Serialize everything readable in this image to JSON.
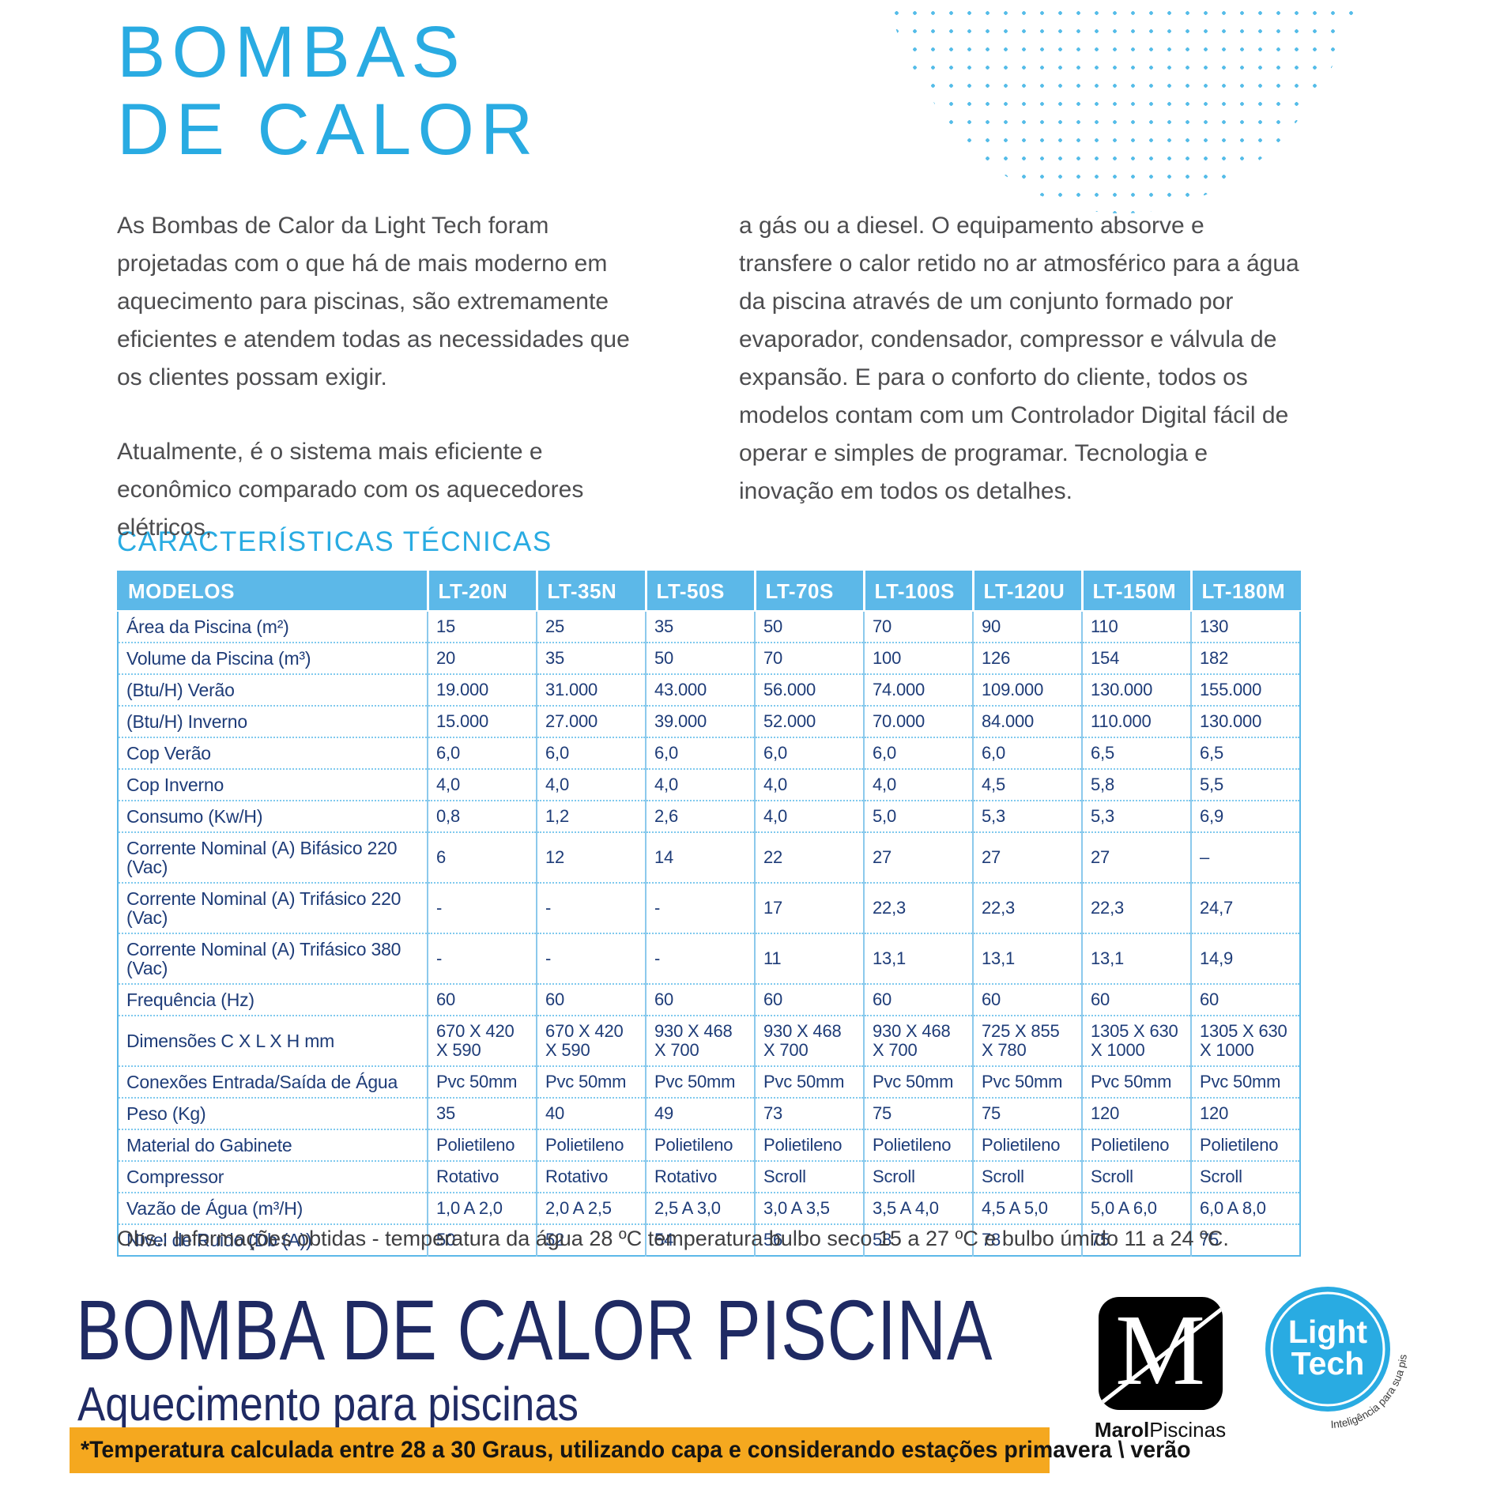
{
  "colors": {
    "accent": "#29ABE2",
    "table_header_blue": "#5CB8E8",
    "cell_navy": "#1E3C78",
    "footer_navy": "#1F2A63",
    "banner_orange": "#F5A81F"
  },
  "header": {
    "title_line1": "BOMBAS",
    "title_line2": "DE CALOR"
  },
  "intro": {
    "left_p1": "As Bombas de Calor da Light Tech foram projetadas com o que há de mais moderno em aquecimento para piscinas, são extremamente eficientes e atendem todas as necessidades que os clientes possam exigir.",
    "left_p2": "Atualmente, é o sistema mais eficiente e econômico comparado com os aquecedores elétricos,",
    "right_p": "a gás ou a diesel. O equipamento absorve e transfere o calor retido no ar atmosférico para a água da piscina através de um conjunto formado por evaporador, condensador, compressor e válvula de expansão. E para o conforto do cliente, todos os modelos contam com um Controlador Digital fácil de operar e simples de programar. Tecnologia e inovação em todos os detalhes."
  },
  "section_heading": "CARACTERÍSTICAS TÉCNICAS",
  "table": {
    "header": [
      "MODELOS",
      "LT-20N",
      "LT-35N",
      "LT-50S",
      "LT-70S",
      "LT-100S",
      "LT-120U",
      "LT-150M",
      "LT-180M"
    ],
    "rows": [
      {
        "label": "Área da Piscina (m²)",
        "values": [
          "15",
          "25",
          "35",
          "50",
          "70",
          "90",
          "110",
          "130"
        ]
      },
      {
        "label": "Volume da Piscina (m³)",
        "values": [
          "20",
          "35",
          "50",
          "70",
          "100",
          "126",
          "154",
          "182"
        ]
      },
      {
        "label": "(Btu/H) Verão",
        "values": [
          "19.000",
          "31.000",
          "43.000",
          "56.000",
          "74.000",
          "109.000",
          "130.000",
          "155.000"
        ]
      },
      {
        "label": "(Btu/H) Inverno",
        "values": [
          "15.000",
          "27.000",
          "39.000",
          "52.000",
          "70.000",
          "84.000",
          "110.000",
          "130.000"
        ]
      },
      {
        "label": "Cop Verão",
        "values": [
          "6,0",
          "6,0",
          "6,0",
          "6,0",
          "6,0",
          "6,0",
          "6,5",
          "6,5"
        ]
      },
      {
        "label": "Cop Inverno",
        "values": [
          "4,0",
          "4,0",
          "4,0",
          "4,0",
          "4,0",
          "4,5",
          "5,8",
          "5,5"
        ]
      },
      {
        "label": "Consumo (Kw/H)",
        "values": [
          "0,8",
          "1,2",
          "2,6",
          "4,0",
          "5,0",
          "5,3",
          "5,3",
          "6,9"
        ]
      },
      {
        "label": "Corrente Nominal (A) Bifásico 220 (Vac)",
        "values": [
          "6",
          "12",
          "14",
          "22",
          "27",
          "27",
          "27",
          "–"
        ]
      },
      {
        "label": "Corrente Nominal (A) Trifásico 220 (Vac)",
        "values": [
          "-",
          "-",
          "-",
          "17",
          "22,3",
          "22,3",
          "22,3",
          "24,7"
        ]
      },
      {
        "label": "Corrente Nominal (A) Trifásico 380 (Vac)",
        "values": [
          "-",
          "-",
          "-",
          "11",
          "13,1",
          "13,1",
          "13,1",
          "14,9"
        ]
      },
      {
        "label": "Frequência (Hz)",
        "values": [
          "60",
          "60",
          "60",
          "60",
          "60",
          "60",
          "60",
          "60"
        ]
      },
      {
        "label": "Dimensões C X L X H mm",
        "values": [
          "670 X 420 X 590",
          "670 X 420 X 590",
          "930 X 468 X 700",
          "930 X 468 X 700",
          "930 X 468 X 700",
          "725 X 855 X 780",
          "1305 X 630 X 1000",
          "1305 X 630 X 1000"
        ]
      },
      {
        "label": "Conexões Entrada/Saída de Água",
        "values": [
          "Pvc 50mm",
          "Pvc 50mm",
          "Pvc 50mm",
          "Pvc 50mm",
          "Pvc 50mm",
          "Pvc 50mm",
          "Pvc 50mm",
          "Pvc 50mm"
        ]
      },
      {
        "label": "Peso (Kg)",
        "values": [
          "35",
          "40",
          "49",
          "73",
          "75",
          "75",
          "120",
          "120"
        ]
      },
      {
        "label": "Material do Gabinete",
        "values": [
          "Polietileno",
          "Polietileno",
          "Polietileno",
          "Polietileno",
          "Polietileno",
          "Polietileno",
          "Polietileno",
          "Polietileno"
        ]
      },
      {
        "label": "Compressor",
        "values": [
          "Rotativo",
          "Rotativo",
          "Rotativo",
          "Scroll",
          "Scroll",
          "Scroll",
          "Scroll",
          "Scroll"
        ]
      },
      {
        "label": "Vazão de Água (m³/H)",
        "values": [
          "1,0 A 2,0",
          "2,0 A 2,5",
          "2,5 A 3,0",
          "3,0 A 3,5",
          "3,5 A 4,0",
          "4,5 A 5,0",
          "5,0 A 6,0",
          "6,0 A 8,0"
        ]
      },
      {
        "label": "Nível de Ruido (Db (A))",
        "values": [
          "50",
          "52",
          "54",
          "56",
          "58",
          "78",
          "75",
          "75"
        ]
      }
    ]
  },
  "obs_note": "Obs.: Informações obtidas - temperatura da água 28 ºC temperatura bulbo seco 15 a 27 ºC e bulbo úmido 11 a 24 ºC.",
  "footer": {
    "headline": "BOMBA DE CALOR PISCINA",
    "subheadline": "Aquecimento para piscinas",
    "banner": "*Temperatura calculada entre 28 a 30 Graus, utilizando capa e considerando estações primavera \\ verão",
    "marol_bold": "Marol",
    "marol_regular": "Piscinas",
    "marol_monogram": "M",
    "lighttech_line1": "Light",
    "lighttech_line2": "Tech",
    "lighttech_tagline": "Inteligência para sua piscina."
  }
}
